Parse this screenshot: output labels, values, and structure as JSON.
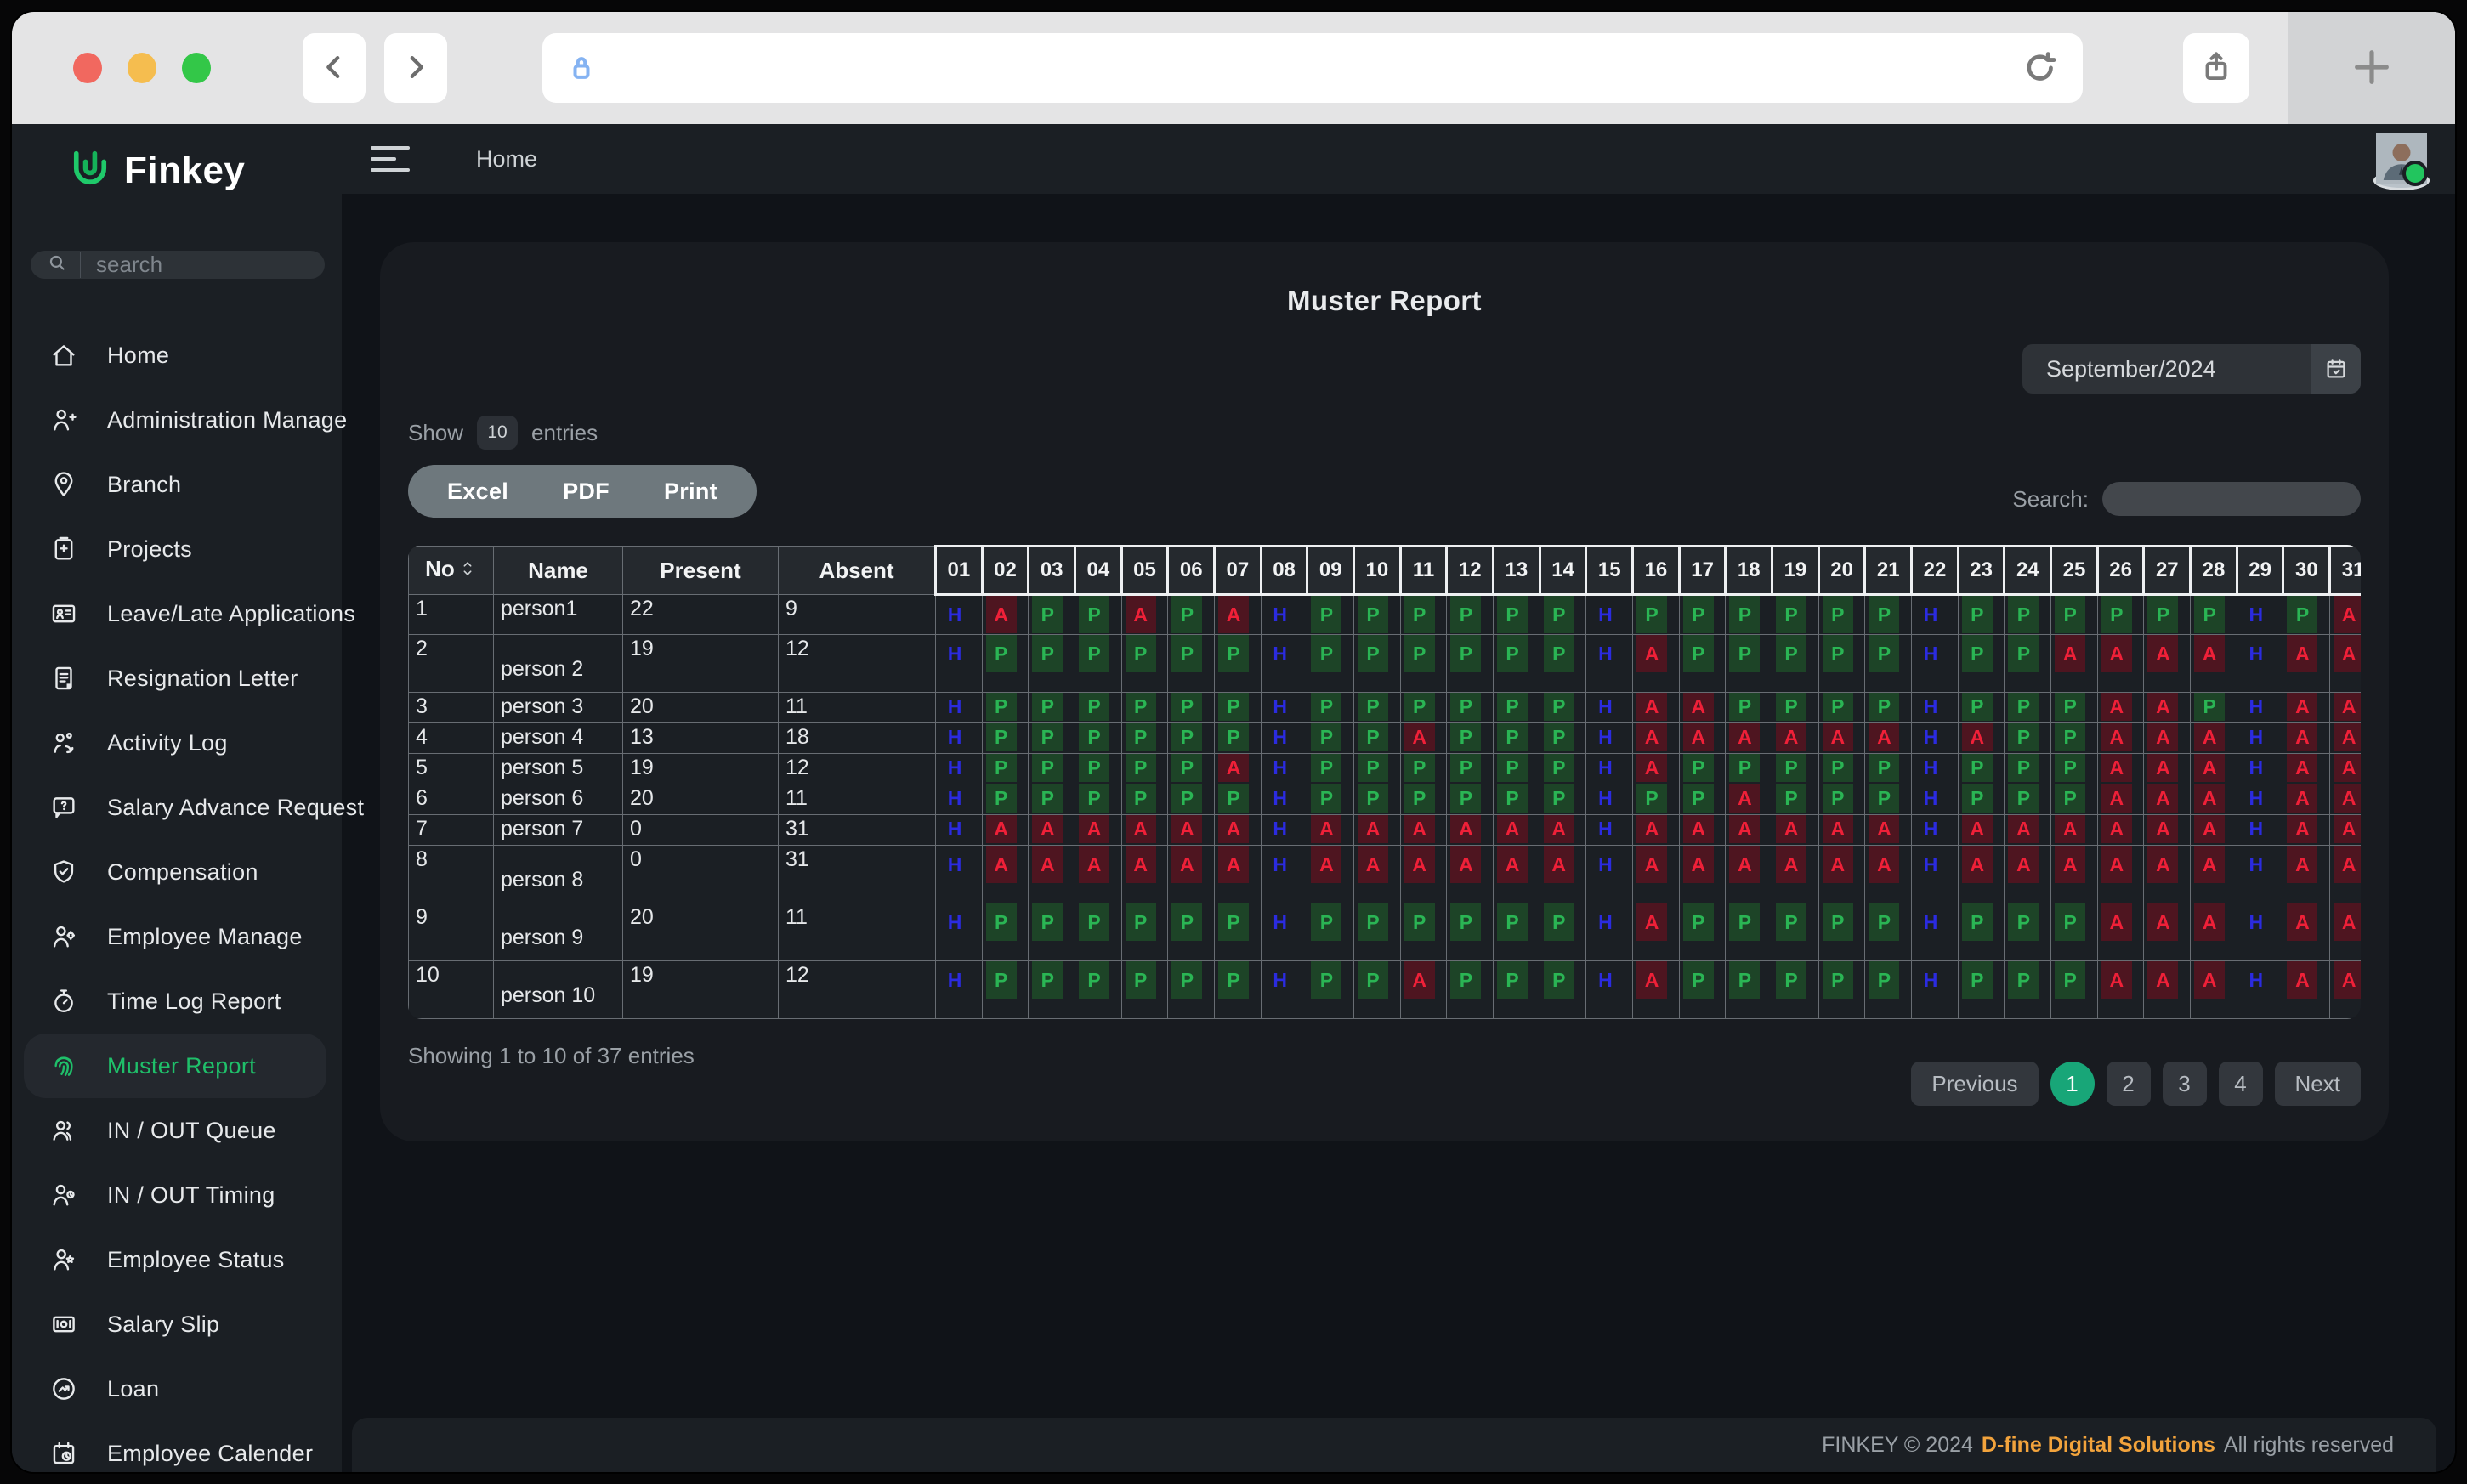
{
  "header": {
    "breadcrumb": "Home"
  },
  "sidebar": {
    "brand": "Finkey",
    "search_placeholder": "search",
    "items": [
      {
        "label": "Home",
        "icon": "home-icon",
        "active": false
      },
      {
        "label": "Administration Manage",
        "icon": "user-plus-icon",
        "active": false
      },
      {
        "label": "Branch",
        "icon": "location-pin-icon",
        "active": false
      },
      {
        "label": "Projects",
        "icon": "clipboard-plus-icon",
        "active": false
      },
      {
        "label": "Leave/Late Applications",
        "icon": "id-card-icon",
        "active": false
      },
      {
        "label": "Resignation Letter",
        "icon": "document-icon",
        "active": false
      },
      {
        "label": "Activity Log",
        "icon": "activity-users-icon",
        "active": false
      },
      {
        "label": "Salary Advance Request",
        "icon": "chat-question-icon",
        "active": false
      },
      {
        "label": "Compensation",
        "icon": "shield-icon",
        "active": false
      },
      {
        "label": "Employee Manage",
        "icon": "user-gear-icon",
        "active": false
      },
      {
        "label": "Time Log Report",
        "icon": "stopwatch-icon",
        "active": false
      },
      {
        "label": "Muster Report",
        "icon": "fingerprint-icon",
        "active": true
      },
      {
        "label": "IN / OUT Queue",
        "icon": "users-icon",
        "active": false
      },
      {
        "label": "IN / OUT Timing",
        "icon": "user-clock-icon",
        "active": false
      },
      {
        "label": "Employee Status",
        "icon": "user-star-icon",
        "active": false
      },
      {
        "label": "Salary Slip",
        "icon": "salary-card-icon",
        "active": false
      },
      {
        "label": "Loan",
        "icon": "loan-icon",
        "active": false
      },
      {
        "label": "Employee Calender",
        "icon": "calendar-clock-icon",
        "active": false
      }
    ]
  },
  "main": {
    "title": "Muster Report",
    "date_value": "September/2024",
    "show": {
      "label_before": "Show",
      "value": "10",
      "label_after": "entries"
    },
    "export_buttons": [
      "Excel",
      "PDF",
      "Print"
    ],
    "search_label": "Search:",
    "table": {
      "columns": [
        "No",
        "Name",
        "Present",
        "Absent"
      ],
      "days": [
        "01",
        "02",
        "03",
        "04",
        "05",
        "06",
        "07",
        "08",
        "09",
        "10",
        "11",
        "12",
        "13",
        "14",
        "15",
        "16",
        "17",
        "18",
        "19",
        "20",
        "21",
        "22",
        "23",
        "24",
        "25",
        "26",
        "27",
        "28",
        "29",
        "30",
        "31"
      ],
      "rows": [
        {
          "no": "1",
          "name": "person1",
          "present": "22",
          "absent": "9",
          "size": "m",
          "days": "HAPPAPAHPPPPPPHPPPPPPHPPPPPPHPA"
        },
        {
          "no": "2",
          "name": "person 2",
          "present": "19",
          "absent": "12",
          "size": "l",
          "days": "HPPPPPPHPPPPPPHAPPPPPHPPAAAAHAA"
        },
        {
          "no": "3",
          "name": "person 3",
          "present": "20",
          "absent": "11",
          "size": "s",
          "days": "HPPPPPPHPPPPPPHAAPPPPHPPPAAPHAA"
        },
        {
          "no": "4",
          "name": "person 4",
          "present": "13",
          "absent": "18",
          "size": "s",
          "days": "HPPPPPPHPPAPPPHAAAAAAHAPPAAAHAA"
        },
        {
          "no": "5",
          "name": "person 5",
          "present": "19",
          "absent": "12",
          "size": "s",
          "days": "HPPPPPAHPPPPPPHAPPPPPHPPPAAAHAA"
        },
        {
          "no": "6",
          "name": "person 6",
          "present": "20",
          "absent": "11",
          "size": "s",
          "days": "HPPPPPPHPPPPPPHPPAPPPHPPPAAAHAA"
        },
        {
          "no": "7",
          "name": "person 7",
          "present": "0",
          "absent": "31",
          "size": "s",
          "days": "HAAAAAAHAAAAAAHAAAAAAHAAAAAAHAA"
        },
        {
          "no": "8",
          "name": "person 8",
          "present": "0",
          "absent": "31",
          "size": "l",
          "days": "HAAAAAAHAAAAAAHAAAAAAHAAAAAAHAA"
        },
        {
          "no": "9",
          "name": "person 9",
          "present": "20",
          "absent": "11",
          "size": "l",
          "days": "HPPPPPPHPPPPPPHAPPPPPHPPPAAAHAA"
        },
        {
          "no": "10",
          "name": "person 10",
          "present": "19",
          "absent": "12",
          "size": "l",
          "days": "HPPPPPPHPPAPPPHAPPPPPHPPPAAAHAA"
        }
      ]
    },
    "summary": "Showing 1 to 10 of 37 entries",
    "pagination": {
      "previous": "Previous",
      "pages": [
        "1",
        "2",
        "3",
        "4"
      ],
      "active_page": "1",
      "next": "Next"
    }
  },
  "footer": {
    "text_left": "FINKEY © 2024",
    "link": "D-fine Digital Solutions",
    "text_right": "All rights reserved"
  },
  "colors": {
    "accent_green": "#1fc06a",
    "active_page_green": "#18a678",
    "present_text": "#2ab554",
    "present_bg": "#1d4427",
    "absent_text": "#ef2038",
    "absent_bg": "#4e1520",
    "holiday_text": "#2b2be0",
    "footer_link_orange": "#f2a33c"
  }
}
